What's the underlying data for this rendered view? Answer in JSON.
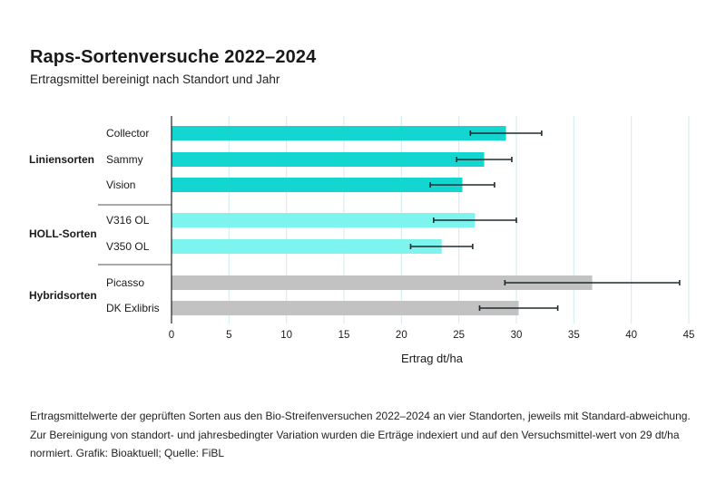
{
  "title": "Raps-Sortenversuche 2022–2024",
  "subtitle": "Ertragsmittel bereinigt nach Standort und Jahr",
  "caption": "Ertragsmittelwerte der geprüften Sorten aus den Bio-Streifenversuchen 2022–2024 an vier Standorten, jeweils mit Standard-abweichung. Zur Bereinigung von standort- und jahresbedingter Variation wurden die Erträge indexiert und auf den Versuchsmittel-wert von 29 dt/ha normiert. Grafik: Bioaktuell; Quelle: FiBL",
  "colors": {
    "Liniensorten": "#14d6d1",
    "HOLL-Sorten": "#7ef4ee",
    "Hybridsorten": "#c2c2c2",
    "error_bar": "#1e2b2e",
    "gridline": "#cdeeed"
  },
  "chart_data": {
    "type": "bar",
    "orientation": "horizontal",
    "title": "Raps-Sortenversuche 2022–2024",
    "subtitle": "Ertragsmittel bereinigt nach Standort und Jahr",
    "xlabel": "Ertrag dt/ha",
    "xlim": [
      0,
      45
    ],
    "xticks": [
      0,
      5,
      10,
      15,
      20,
      25,
      30,
      35,
      40,
      45
    ],
    "grid": "vertical",
    "groups": [
      {
        "name": "Liniensorten",
        "bars": [
          {
            "label": "Collector",
            "value": 29.1,
            "sd": 3.1
          },
          {
            "label": "Sammy",
            "value": 27.2,
            "sd": 2.4
          },
          {
            "label": "Vision",
            "value": 25.3,
            "sd": 2.8
          }
        ]
      },
      {
        "name": "HOLL-Sorten",
        "bars": [
          {
            "label": "V316 OL",
            "value": 26.4,
            "sd": 3.6
          },
          {
            "label": "V350 OL",
            "value": 23.5,
            "sd": 2.7
          }
        ]
      },
      {
        "name": "Hybridsorten",
        "bars": [
          {
            "label": "Picasso",
            "value": 36.6,
            "sd": 7.6
          },
          {
            "label": "DK Exlibris",
            "value": 30.2,
            "sd": 3.4
          }
        ]
      }
    ]
  }
}
